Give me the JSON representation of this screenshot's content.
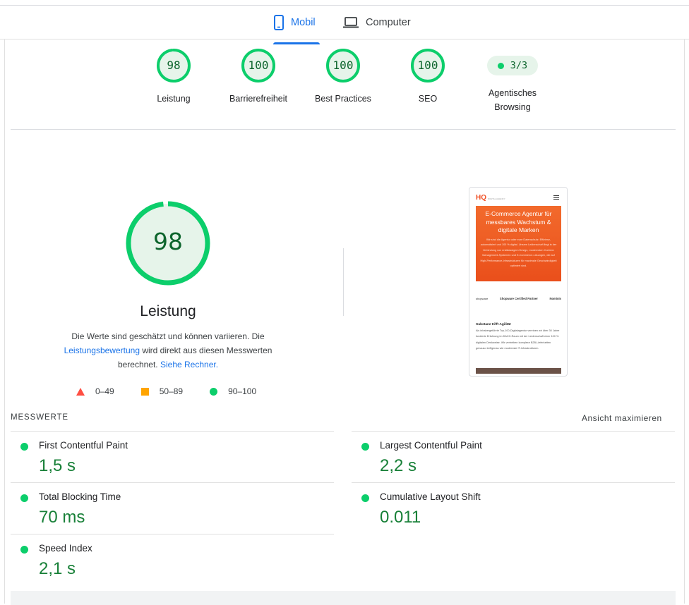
{
  "tabs": [
    {
      "label": "Mobil",
      "icon": "smartphone-icon",
      "active": true
    },
    {
      "label": "Computer",
      "icon": "laptop-icon",
      "active": false
    }
  ],
  "summary_scores": [
    {
      "score": "98",
      "label": "Leistung",
      "fraction": 0.98
    },
    {
      "score": "100",
      "label": "Barrierefreiheit",
      "fraction": 1.0
    },
    {
      "score": "100",
      "label": "Best Practices",
      "fraction": 1.0
    },
    {
      "score": "100",
      "label": "SEO",
      "fraction": 1.0
    }
  ],
  "agent": {
    "value": "3/3",
    "label_line1": "Agentisches",
    "label_line2": "Browsing"
  },
  "performance": {
    "score": "98",
    "fraction": 0.98,
    "title": "Leistung",
    "desc_part1": "Die Werte sind geschätzt und können variieren. Die ",
    "desc_link1": "Leistungsbewertung",
    "desc_part2": " wird direkt aus diesen Messwerten berechnet. ",
    "desc_link2": "Siehe Rechner."
  },
  "legend": [
    {
      "range": "0–49",
      "color": "#ff4e42"
    },
    {
      "range": "50–89",
      "color": "#ffa400"
    },
    {
      "range": "90–100",
      "color": "#0cce6b"
    }
  ],
  "screenshot": {
    "logo": "HQ",
    "logo_sub": "DIGITAL AGENCY",
    "hero_title": "E-Commerce Agentur für messbares Wachstum & digitale Marken",
    "hero_text": "Wir sind die Agentur oder eure Datenschutz: Effizienz, automatisiert und 100 % digital. Unsere Leidenschaft liegt in der Verbindung von erstklassigem Design, modernsten Content-Management-Systemen und E-Commerce-Lösungen, die auf High-Performance-Infrastrukturen für maximale Geschwindigkeit optimiert sind.",
    "partner_left": "shopware",
    "partner_mid": "Shopware Certified Partner",
    "partner_right": "Nominis",
    "section_title": "Substanz trifft Agilität",
    "section_text": "Als inhabergeführte Top-100-Digitalagentur vereinen wir über 30 Jahre fundierte Erfahrung im DACH-Raum mit der Leidenschaft einer 100 % digitalen Denkweise. Wir vertreiben komplexe B2B-Lieferketten genauso treffgenau wie modernste IT-Infrastrukturen."
  },
  "metrics_section": {
    "title": "MESSWERTE",
    "expand_label": "Ansicht maximieren"
  },
  "metrics": [
    {
      "name": "First Contentful Paint",
      "value": "1,5 s"
    },
    {
      "name": "Largest Contentful Paint",
      "value": "2,2 s"
    },
    {
      "name": "Total Blocking Time",
      "value": "70 ms"
    },
    {
      "name": "Cumulative Layout Shift",
      "value": "0.011"
    },
    {
      "name": "Speed Index",
      "value": "2,1 s"
    }
  ],
  "colors": {
    "good": "#0cce6b",
    "good_text": "#0d652d",
    "accent": "#1a73e8"
  }
}
